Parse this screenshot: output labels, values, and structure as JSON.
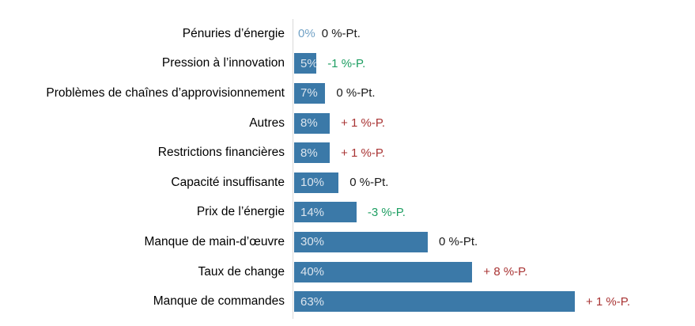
{
  "chart_data": {
    "type": "bar",
    "orientation": "horizontal",
    "title": "",
    "xlabel": "",
    "ylabel": "",
    "xlim": [
      0,
      70
    ],
    "grid": false,
    "legend": false,
    "categories": [
      "Pénuries d’énergie",
      "Pression à l’innovation",
      "Problèmes de chaînes d’approvisionnement",
      "Autres",
      "Restrictions financières",
      "Capacité insuffisante",
      "Prix de l’énergie",
      "Manque de main-d’œuvre",
      "Taux de change",
      "Manque de commandes"
    ],
    "values": [
      0,
      5,
      7,
      8,
      8,
      10,
      14,
      30,
      40,
      63
    ],
    "value_labels": [
      "0%",
      "5%",
      "7%",
      "8%",
      "8%",
      "10%",
      "14%",
      "30%",
      "40%",
      "63%"
    ],
    "delta_labels": [
      "0 %-Pt.",
      "-1 %-P.",
      "0 %-Pt.",
      "+ 1 %-P.",
      "+ 1 %-P.",
      "0 %-Pt.",
      "-3 %-P.",
      "0 %-Pt.",
      "+ 8 %-P.",
      "+ 1 %-P."
    ],
    "delta_trends": [
      "neutral",
      "down",
      "neutral",
      "up",
      "up",
      "neutral",
      "down",
      "neutral",
      "up",
      "up"
    ]
  },
  "colors": {
    "background": "#FFFFFF",
    "bar": "#3B79A8",
    "bar_value_text": "#DCE5EE",
    "zero_value_text": "#72A2C6",
    "category_text": "#000000",
    "delta_neutral": "#1A1A1A",
    "delta_down": "#1E9E62",
    "delta_up": "#A93434",
    "axis_line": "#D8D8D8"
  }
}
